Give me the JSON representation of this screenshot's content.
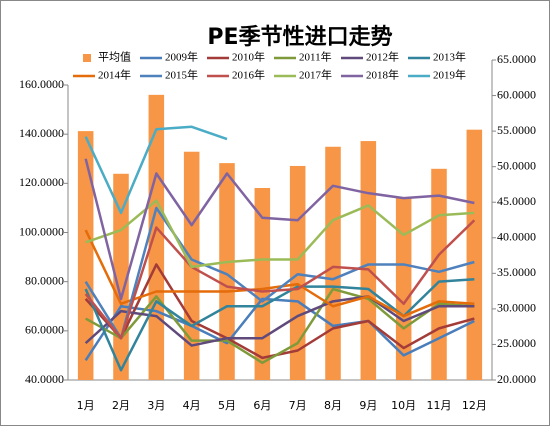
{
  "chart_data": {
    "type": "combo",
    "title": "PE季节性进口走势",
    "categories": [
      "1月",
      "2月",
      "3月",
      "4月",
      "5月",
      "6月",
      "7月",
      "8月",
      "9月",
      "10月",
      "11月",
      "12月"
    ],
    "ylim": [
      40,
      160
    ],
    "yticks": [
      {
        "value": 40,
        "label": "40.0000"
      },
      {
        "value": 60,
        "label": "60.0000"
      },
      {
        "value": 80,
        "label": "80.0000"
      },
      {
        "value": 100,
        "label": "100.0000"
      },
      {
        "value": 120,
        "label": "120.0000"
      },
      {
        "value": 140,
        "label": "140.0000"
      },
      {
        "value": 160,
        "label": "160.0000"
      }
    ],
    "y2lim": [
      20,
      65
    ],
    "y2ticks": [
      {
        "value": 20,
        "label": "20.0000"
      },
      {
        "value": 25,
        "label": "25.0000"
      },
      {
        "value": 30,
        "label": "30.0000"
      },
      {
        "value": 35,
        "label": "35.0000"
      },
      {
        "value": 40,
        "label": "40.0000"
      },
      {
        "value": 45,
        "label": "45.0000"
      },
      {
        "value": 50,
        "label": "50.0000"
      },
      {
        "value": 55,
        "label": "55.0000"
      },
      {
        "value": 60,
        "label": "60.0000"
      },
      {
        "value": 65,
        "label": "65.0000"
      }
    ],
    "series": [
      {
        "name": "平均值",
        "type": "bar",
        "axis": "y2",
        "color": "#f79646",
        "values": [
          55.0,
          49.0,
          60.1,
          52.1,
          50.5,
          47.0,
          50.1,
          52.8,
          53.6,
          45.7,
          49.7,
          55.2
        ]
      },
      {
        "name": "2009年",
        "type": "line",
        "color": "#4a7ebb",
        "values": [
          48,
          70,
          68,
          62,
          55,
          73,
          72,
          62,
          64,
          50,
          57,
          64
        ]
      },
      {
        "name": "2010年",
        "type": "line",
        "color": "#a33b39",
        "values": [
          73,
          57,
          87,
          64,
          57,
          49,
          52,
          61,
          64,
          53,
          61,
          65
        ]
      },
      {
        "name": "2011年",
        "type": "line",
        "color": "#7f9a3a",
        "values": [
          65,
          57,
          74,
          56,
          56,
          47,
          55,
          77,
          73,
          61,
          71,
          70
        ]
      },
      {
        "name": "2012年",
        "type": "line",
        "color": "#604a7b",
        "values": [
          55,
          68,
          66,
          54,
          57,
          57,
          66,
          72,
          74,
          64,
          70,
          70
        ]
      },
      {
        "name": "2013年",
        "type": "line",
        "color": "#31849b",
        "values": [
          77,
          44,
          72,
          62,
          70,
          70,
          78,
          78,
          77,
          66,
          80,
          81
        ]
      },
      {
        "name": "2014年",
        "type": "line",
        "color": "#e46c0a",
        "values": [
          101,
          71,
          76,
          76,
          76,
          77,
          79,
          70,
          74,
          66,
          72,
          71
        ]
      },
      {
        "name": "2015年",
        "type": "line",
        "color": "#4f81bd",
        "values": [
          80,
          57,
          110,
          89,
          83,
          72,
          83,
          81,
          87,
          87,
          84,
          88
        ]
      },
      {
        "name": "2016年",
        "type": "line",
        "color": "#c0504d",
        "values": [
          75,
          57,
          102,
          86,
          78,
          76,
          77,
          86,
          85,
          71,
          91,
          105
        ]
      },
      {
        "name": "2017年",
        "type": "line",
        "color": "#9bbb59",
        "values": [
          96,
          101,
          113,
          86,
          88,
          89,
          89,
          105,
          111,
          99,
          107,
          108
        ]
      },
      {
        "name": "2018年",
        "type": "line",
        "color": "#8064a2",
        "values": [
          130,
          73,
          124,
          103,
          124,
          106,
          105,
          119,
          116,
          114,
          115,
          112
        ]
      },
      {
        "name": "2019年",
        "type": "line",
        "color": "#4bacc6",
        "values": [
          139,
          108,
          142,
          143,
          138,
          null,
          null,
          null,
          null,
          null,
          null,
          null
        ]
      }
    ]
  }
}
